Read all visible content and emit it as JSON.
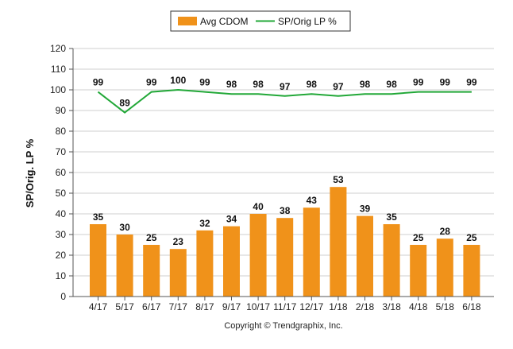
{
  "chart_data": {
    "type": "bar",
    "categories": [
      "4/17",
      "5/17",
      "6/17",
      "7/17",
      "8/17",
      "9/17",
      "10/17",
      "11/17",
      "12/17",
      "1/18",
      "2/18",
      "3/18",
      "4/18",
      "5/18",
      "6/18"
    ],
    "series": [
      {
        "name": "Avg CDOM",
        "kind": "bar",
        "color": "#f0921a",
        "values": [
          35,
          30,
          25,
          23,
          32,
          34,
          40,
          38,
          43,
          53,
          39,
          35,
          25,
          28,
          25
        ]
      },
      {
        "name": "SP/Orig LP %",
        "kind": "line",
        "color": "#22a838",
        "values": [
          99,
          89,
          99,
          100,
          99,
          98,
          98,
          97,
          98,
          97,
          98,
          98,
          99,
          99,
          99
        ]
      }
    ],
    "ylabel": "SP/Orig. LP %",
    "xlabel": "",
    "ylim": [
      0,
      120
    ],
    "yticks": [
      0,
      10,
      20,
      30,
      40,
      50,
      60,
      70,
      80,
      90,
      100,
      110,
      120
    ],
    "grid": true,
    "legend_position": "top-center"
  },
  "footer": {
    "copyright": "Copyright © Trendgraphix, Inc."
  }
}
